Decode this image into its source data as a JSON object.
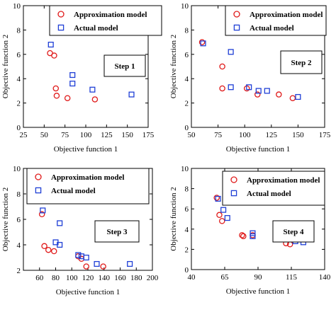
{
  "chart_data": [
    {
      "type": "scatter",
      "step_label": "Step 1",
      "xlabel": "Objective function 1",
      "ylabel": "Objective function 2",
      "xlim": [
        25,
        175
      ],
      "ylim": [
        0,
        10
      ],
      "xticks": [
        25,
        50,
        75,
        100,
        125,
        150,
        175
      ],
      "yticks": [
        0,
        2,
        4,
        6,
        8,
        10
      ],
      "legend_position": "top-right",
      "series": [
        {
          "name": "Approximation model",
          "marker": "circle",
          "color": "#e01b1b",
          "points": [
            [
              57,
              6.1
            ],
            [
              62,
              5.9
            ],
            [
              64,
              3.2
            ],
            [
              65,
              2.6
            ],
            [
              78,
              2.4
            ],
            [
              111,
              2.3
            ]
          ]
        },
        {
          "name": "Actual model",
          "marker": "square",
          "color": "#1f3fd6",
          "points": [
            [
              58,
              6.8
            ],
            [
              84,
              4.3
            ],
            [
              84,
              3.6
            ],
            [
              108,
              3.1
            ],
            [
              155,
              2.7
            ]
          ]
        }
      ]
    },
    {
      "type": "scatter",
      "step_label": "Step 2",
      "xlabel": "Objective function 1",
      "ylabel": "Objective function 2",
      "xlim": [
        50,
        175
      ],
      "ylim": [
        0,
        10
      ],
      "xticks": [
        50,
        75,
        100,
        125,
        150,
        175
      ],
      "yticks": [
        0,
        2,
        4,
        6,
        8,
        10
      ],
      "legend_position": "top-right",
      "series": [
        {
          "name": "Approximation model",
          "marker": "circle",
          "color": "#e01b1b",
          "points": [
            [
              60,
              7.0
            ],
            [
              79,
              5.0
            ],
            [
              79,
              3.2
            ],
            [
              102,
              3.2
            ],
            [
              112,
              2.7
            ],
            [
              132,
              2.7
            ],
            [
              145,
              2.4
            ]
          ]
        },
        {
          "name": "Actual model",
          "marker": "square",
          "color": "#1f3fd6",
          "points": [
            [
              61,
              6.9
            ],
            [
              87,
              6.2
            ],
            [
              87,
              3.3
            ],
            [
              104,
              3.3
            ],
            [
              113,
              3.0
            ],
            [
              121,
              3.0
            ],
            [
              150,
              2.5
            ]
          ]
        }
      ]
    },
    {
      "type": "scatter",
      "step_label": "Step 3",
      "xlabel": "Objective function 1",
      "ylabel": "Objective function 2",
      "xlim": [
        40,
        200
      ],
      "ylim": [
        2,
        10
      ],
      "xticks": [
        60,
        80,
        100,
        120,
        140,
        160,
        180,
        200
      ],
      "yticks": [
        2,
        4,
        6,
        8,
        10
      ],
      "legend_position": "top-left",
      "series": [
        {
          "name": "Approximation model",
          "marker": "circle",
          "color": "#e01b1b",
          "points": [
            [
              63,
              6.4
            ],
            [
              66,
              3.9
            ],
            [
              71,
              3.6
            ],
            [
              78,
              3.5
            ],
            [
              108,
              3.1
            ],
            [
              112,
              2.9
            ],
            [
              118,
              2.3
            ],
            [
              139,
              2.3
            ]
          ]
        },
        {
          "name": "Actual model",
          "marker": "square",
          "color": "#1f3fd6",
          "points": [
            [
              64,
              6.7
            ],
            [
              85,
              5.7
            ],
            [
              80,
              4.2
            ],
            [
              85,
              4.0
            ],
            [
              108,
              3.2
            ],
            [
              112,
              3.1
            ],
            [
              118,
              3.0
            ],
            [
              131,
              2.5
            ],
            [
              172,
              2.5
            ]
          ]
        }
      ]
    },
    {
      "type": "scatter",
      "step_label": "Step 4",
      "xlabel": "Objective function 1",
      "ylabel": "Objective function 2",
      "xlim": [
        40,
        140
      ],
      "ylim": [
        0,
        10
      ],
      "xticks": [
        40,
        65,
        90,
        115,
        140
      ],
      "yticks": [
        0,
        2,
        4,
        6,
        8,
        10
      ],
      "legend_position": "top-right",
      "series": [
        {
          "name": "Approximation model",
          "marker": "circle",
          "color": "#e01b1b",
          "points": [
            [
              59,
              7.1
            ],
            [
              61,
              5.4
            ],
            [
              63,
              4.8
            ],
            [
              78,
              3.4
            ],
            [
              79,
              3.3
            ],
            [
              86,
              3.4
            ],
            [
              107,
              3.2
            ],
            [
              111,
              2.6
            ],
            [
              114,
              2.5
            ]
          ]
        },
        {
          "name": "Actual model",
          "marker": "square",
          "color": "#1f3fd6",
          "points": [
            [
              60,
              7.0
            ],
            [
              64,
              5.9
            ],
            [
              67,
              5.1
            ],
            [
              86,
              3.6
            ],
            [
              86,
              3.3
            ],
            [
              112,
              3.4
            ],
            [
              115,
              3.3
            ],
            [
              118,
              2.8
            ],
            [
              124,
              2.7
            ]
          ]
        }
      ]
    }
  ]
}
